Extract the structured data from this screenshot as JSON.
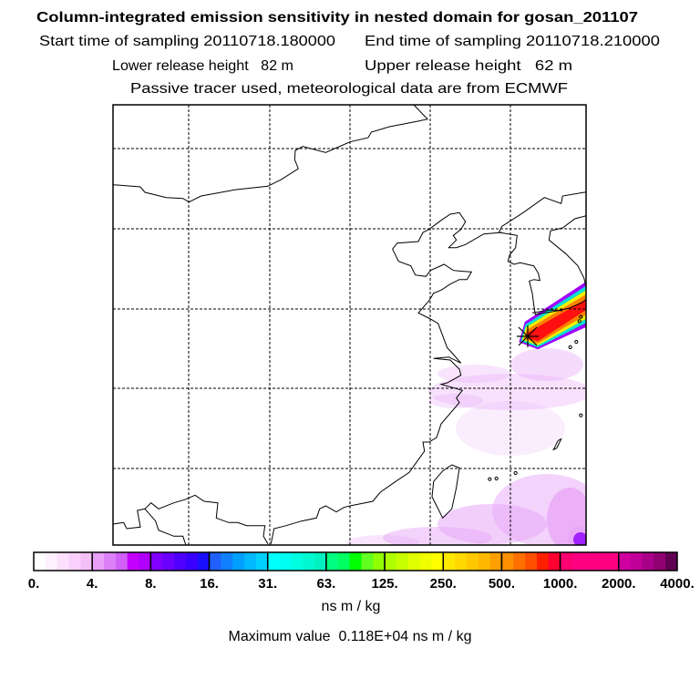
{
  "header": {
    "title": "Column-integrated emission sensitivity in nested domain for gosan_201107",
    "start_time": "Start time of sampling 20110718.180000",
    "end_time": "End time of sampling 20110718.210000",
    "lower_release": "Lower release height   82 m",
    "upper_release": "Upper release height   62 m",
    "tracer_info": "Passive tracer used, meteorological data are from ECMWF"
  },
  "map": {
    "release_marker_icon": "star-asterisk-icon",
    "colors": {
      "frame": "#000000",
      "plume_outer": "#a000ff",
      "plume_mid": "#00e0d0",
      "plume_yellow": "#f0f000",
      "plume_orange": "#ff8000",
      "plume_core": "#ff1010",
      "background_haze": "#e8a8f8"
    }
  },
  "colorbar": {
    "labels": [
      "0.",
      "4.",
      "8.",
      "16.",
      "31.",
      "63.",
      "125.",
      "250.",
      "500.",
      "1000.",
      "2000.",
      "4000."
    ],
    "segments": [
      [
        "#ffffff",
        "#fff0ff",
        "#fde0fd",
        "#f9d0fb",
        "#f4c0f8"
      ],
      [
        "#e8a0f8",
        "#dc80f8",
        "#d060f8",
        "#c400ff",
        "#b000ff"
      ],
      [
        "#8000ff",
        "#6a00ff",
        "#5000ff",
        "#3a00ff",
        "#1a10ff"
      ],
      [
        "#2060ff",
        "#1080ff",
        "#00a0ff",
        "#00b8ff",
        "#00d0ff"
      ],
      [
        "#00ffff",
        "#00fff0",
        "#00ffe0",
        "#00f8d0",
        "#00f0c0"
      ],
      [
        "#00ff80",
        "#00ff60",
        "#00ff00",
        "#60ff20",
        "#90ff00"
      ],
      [
        "#b0ff00",
        "#c8ff00",
        "#e0ff00",
        "#f0ff00",
        "#ffff00"
      ],
      [
        "#ffe800",
        "#ffd800",
        "#ffc800",
        "#ffb800",
        "#ffa000"
      ],
      [
        "#ff9000",
        "#ff7000",
        "#ff5000",
        "#ff2000",
        "#ff0030"
      ],
      [
        "#ff0070",
        "#ff0080",
        "#ff0080",
        "#ff0080",
        "#ff0080"
      ],
      [
        "#d000a0",
        "#c00098",
        "#a80088",
        "#900070",
        "#600050"
      ]
    ],
    "unit": "ns m / kg",
    "max_value": "Maximum value  0.118E+04 ns m / kg"
  }
}
